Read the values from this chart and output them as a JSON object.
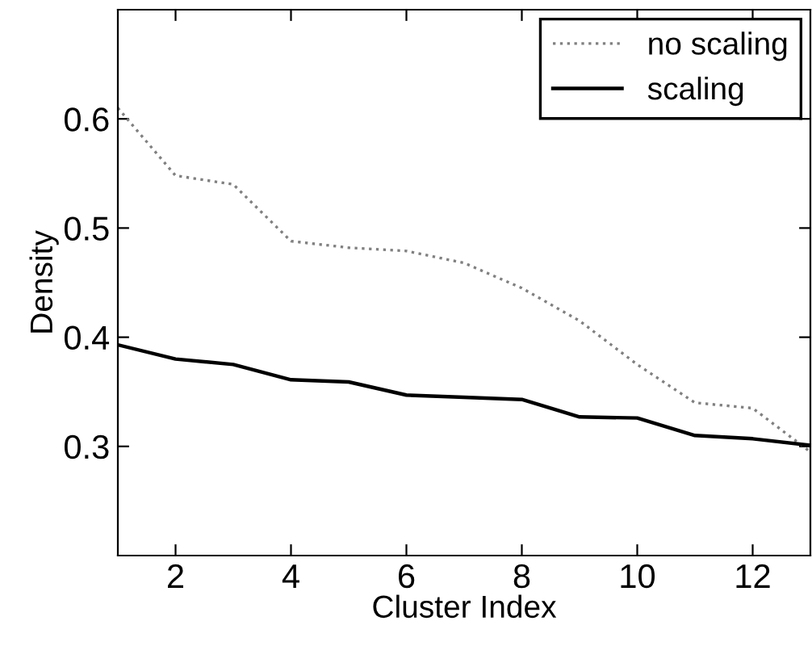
{
  "chart_data": {
    "type": "line",
    "xlabel": "Cluster Index",
    "ylabel": "Density",
    "x": [
      1,
      2,
      3,
      4,
      5,
      6,
      7,
      8,
      9,
      10,
      11,
      12,
      13
    ],
    "series": [
      {
        "name": "no scaling",
        "color": "#808080",
        "line_style": "dotted",
        "values": [
          0.61,
          0.548,
          0.54,
          0.488,
          0.482,
          0.479,
          0.468,
          0.445,
          0.415,
          0.375,
          0.34,
          0.335,
          0.295
        ]
      },
      {
        "name": "scaling",
        "color": "#000000",
        "line_style": "solid",
        "values": [
          0.393,
          0.38,
          0.375,
          0.361,
          0.359,
          0.347,
          0.345,
          0.343,
          0.327,
          0.326,
          0.31,
          0.307,
          0.301
        ]
      }
    ],
    "xlim": [
      1,
      13
    ],
    "xticks": [
      2,
      4,
      6,
      8,
      10,
      12
    ],
    "ylim": [
      0.2,
      0.7
    ],
    "yticks": [
      0.3,
      0.4,
      0.5,
      0.6
    ],
    "legend": "top right",
    "grid": false,
    "marker": "none"
  }
}
